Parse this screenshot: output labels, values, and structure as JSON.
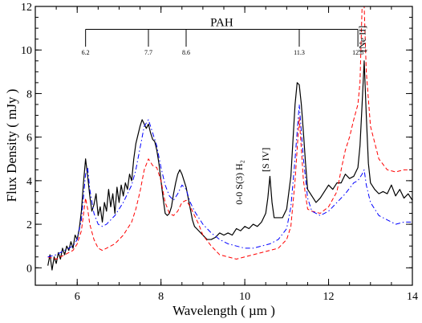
{
  "chart_data": {
    "type": "line",
    "xlabel": "Wavelength ( µm )",
    "ylabel": "Flux Density ( mJy )",
    "xlim": [
      5,
      14
    ],
    "ylim": [
      -0.8,
      12
    ],
    "xticks": [
      6,
      8,
      10,
      12,
      14
    ],
    "yticks": [
      0,
      2,
      4,
      6,
      8,
      10,
      12
    ],
    "grid": false,
    "series": [
      {
        "style": "solid",
        "color": "#000000",
        "x": [
          5.3,
          5.35,
          5.4,
          5.45,
          5.5,
          5.55,
          5.6,
          5.65,
          5.7,
          5.75,
          5.8,
          5.85,
          5.9,
          5.95,
          6.0,
          6.05,
          6.1,
          6.15,
          6.2,
          6.25,
          6.3,
          6.35,
          6.4,
          6.45,
          6.5,
          6.55,
          6.6,
          6.65,
          6.7,
          6.75,
          6.8,
          6.85,
          6.9,
          6.95,
          7.0,
          7.05,
          7.1,
          7.15,
          7.2,
          7.25,
          7.3,
          7.35,
          7.4,
          7.45,
          7.5,
          7.55,
          7.6,
          7.65,
          7.7,
          7.75,
          7.8,
          7.85,
          7.9,
          7.95,
          8.0,
          8.05,
          8.1,
          8.15,
          8.2,
          8.25,
          8.3,
          8.35,
          8.4,
          8.45,
          8.5,
          8.55,
          8.6,
          8.65,
          8.7,
          8.75,
          8.8,
          8.85,
          8.9,
          8.95,
          9.0,
          9.1,
          9.2,
          9.3,
          9.4,
          9.5,
          9.6,
          9.7,
          9.8,
          9.9,
          10.0,
          10.1,
          10.2,
          10.3,
          10.4,
          10.5,
          10.55,
          10.6,
          10.65,
          10.7,
          10.8,
          10.9,
          11.0,
          11.1,
          11.2,
          11.25,
          11.3,
          11.35,
          11.4,
          11.45,
          11.5,
          11.6,
          11.7,
          11.8,
          11.9,
          12.0,
          12.1,
          12.2,
          12.3,
          12.4,
          12.5,
          12.6,
          12.7,
          12.75,
          12.8,
          12.85,
          12.9,
          12.95,
          13.0,
          13.1,
          13.2,
          13.3,
          13.4,
          13.5,
          13.6,
          13.7,
          13.8,
          13.9,
          14.0
        ],
        "y": [
          0.1,
          0.6,
          -0.1,
          0.5,
          0.2,
          0.7,
          0.4,
          0.9,
          0.6,
          1.0,
          0.8,
          1.2,
          0.9,
          1.5,
          1.3,
          1.8,
          2.6,
          3.9,
          5.0,
          4.2,
          3.3,
          2.6,
          2.9,
          3.4,
          2.4,
          2.8,
          2.1,
          3.0,
          2.6,
          3.6,
          2.8,
          3.4,
          2.5,
          3.7,
          3.0,
          3.8,
          3.3,
          3.9,
          3.6,
          4.3,
          4.0,
          5.0,
          5.7,
          6.1,
          6.5,
          6.8,
          6.6,
          6.4,
          6.6,
          6.2,
          5.9,
          5.8,
          5.4,
          4.8,
          4.0,
          3.2,
          2.5,
          2.4,
          2.5,
          2.8,
          3.4,
          3.9,
          4.3,
          4.5,
          4.3,
          4.0,
          3.7,
          3.2,
          2.7,
          2.2,
          1.9,
          1.8,
          1.7,
          1.6,
          1.5,
          1.3,
          1.3,
          1.4,
          1.6,
          1.5,
          1.6,
          1.5,
          1.8,
          1.7,
          1.9,
          1.8,
          2.0,
          1.9,
          2.1,
          2.5,
          3.2,
          4.2,
          3.0,
          2.3,
          2.3,
          2.3,
          2.7,
          4.2,
          7.5,
          8.5,
          8.4,
          7.5,
          6.2,
          4.8,
          3.6,
          3.3,
          3.0,
          3.2,
          3.5,
          3.8,
          3.6,
          3.9,
          3.9,
          4.3,
          4.1,
          4.2,
          4.6,
          5.6,
          7.5,
          9.5,
          7.0,
          4.8,
          3.9,
          3.6,
          3.4,
          3.5,
          3.4,
          3.8,
          3.3,
          3.6,
          3.2,
          3.4,
          3.1
        ]
      },
      {
        "style": "dashed",
        "color": "#ff0000",
        "x": [
          5.3,
          5.5,
          5.7,
          5.9,
          6.0,
          6.1,
          6.2,
          6.25,
          6.3,
          6.4,
          6.5,
          6.6,
          6.7,
          6.8,
          6.9,
          7.0,
          7.1,
          7.2,
          7.3,
          7.4,
          7.5,
          7.6,
          7.7,
          7.8,
          7.9,
          8.0,
          8.1,
          8.2,
          8.3,
          8.4,
          8.5,
          8.6,
          8.7,
          8.8,
          8.9,
          9.0,
          9.2,
          9.4,
          9.6,
          9.8,
          10.0,
          10.2,
          10.4,
          10.6,
          10.8,
          11.0,
          11.1,
          11.2,
          11.3,
          11.4,
          11.5,
          11.6,
          11.8,
          12.0,
          12.2,
          12.3,
          12.4,
          12.5,
          12.6,
          12.7,
          12.75,
          12.8,
          12.85,
          12.9,
          13.0,
          13.2,
          13.4,
          13.6,
          13.8,
          14.0
        ],
        "y": [
          0.5,
          0.4,
          0.6,
          0.8,
          1.1,
          1.7,
          3.2,
          2.7,
          2.0,
          1.3,
          0.9,
          0.8,
          0.9,
          1.0,
          1.1,
          1.3,
          1.5,
          1.8,
          2.1,
          2.7,
          3.5,
          4.5,
          5.0,
          4.7,
          4.6,
          4.0,
          3.0,
          2.5,
          2.4,
          2.6,
          3.0,
          3.1,
          2.8,
          2.4,
          2.0,
          1.5,
          1.0,
          0.6,
          0.5,
          0.4,
          0.5,
          0.6,
          0.7,
          0.8,
          0.9,
          1.3,
          1.9,
          4.0,
          6.9,
          4.0,
          2.7,
          2.6,
          2.5,
          2.8,
          3.5,
          4.5,
          5.4,
          6.0,
          6.8,
          7.5,
          8.5,
          12.0,
          12.0,
          9.0,
          6.5,
          5.0,
          4.5,
          4.4,
          4.5,
          4.5
        ]
      },
      {
        "style": "dash-dot",
        "color": "#0000ff",
        "x": [
          5.3,
          5.5,
          5.7,
          5.9,
          6.0,
          6.1,
          6.2,
          6.25,
          6.3,
          6.4,
          6.5,
          6.6,
          6.7,
          6.8,
          6.9,
          7.0,
          7.1,
          7.2,
          7.3,
          7.4,
          7.5,
          7.6,
          7.7,
          7.8,
          7.9,
          8.0,
          8.1,
          8.2,
          8.3,
          8.4,
          8.5,
          8.6,
          8.7,
          8.8,
          8.9,
          9.0,
          9.2,
          9.4,
          9.6,
          9.8,
          10.0,
          10.2,
          10.4,
          10.6,
          10.8,
          11.0,
          11.1,
          11.2,
          11.3,
          11.4,
          11.5,
          11.6,
          11.8,
          12.0,
          12.2,
          12.4,
          12.6,
          12.7,
          12.8,
          12.85,
          12.9,
          13.0,
          13.2,
          13.4,
          13.6,
          13.8,
          14.0
        ],
        "y": [
          0.5,
          0.6,
          0.8,
          1.0,
          1.3,
          2.2,
          4.3,
          4.6,
          3.6,
          2.5,
          2.0,
          1.9,
          2.0,
          2.2,
          2.4,
          2.7,
          3.0,
          3.4,
          3.8,
          4.5,
          5.5,
          6.5,
          6.8,
          6.2,
          5.6,
          4.6,
          3.8,
          3.3,
          3.1,
          3.4,
          3.8,
          3.6,
          3.0,
          2.6,
          2.3,
          2.0,
          1.6,
          1.3,
          1.1,
          1.0,
          0.9,
          0.9,
          1.0,
          1.1,
          1.3,
          1.8,
          2.8,
          5.0,
          7.5,
          5.0,
          3.2,
          2.6,
          2.4,
          2.6,
          3.0,
          3.4,
          3.9,
          4.0,
          4.3,
          4.5,
          3.8,
          3.0,
          2.4,
          2.2,
          2.0,
          2.1,
          2.1
        ]
      }
    ],
    "annotations": [
      {
        "text": "0-0 S(3) H₂",
        "x": 9.86,
        "y": 2.9
      },
      {
        "text": "[S IV]",
        "x": 10.5,
        "y": 4.4
      },
      {
        "text": "[Ne II]",
        "x": 12.8,
        "y": 9.9
      }
    ],
    "pah_bracket": {
      "title": "PAH",
      "y": 10.95,
      "tick_bottom": 10.15,
      "features": [
        {
          "x": 6.2,
          "label": "6.2"
        },
        {
          "x": 7.7,
          "label": "7.7"
        },
        {
          "x": 8.6,
          "label": "8.6"
        },
        {
          "x": 11.3,
          "label": "11.3"
        },
        {
          "x": 12.7,
          "label": "12.6"
        }
      ]
    }
  }
}
